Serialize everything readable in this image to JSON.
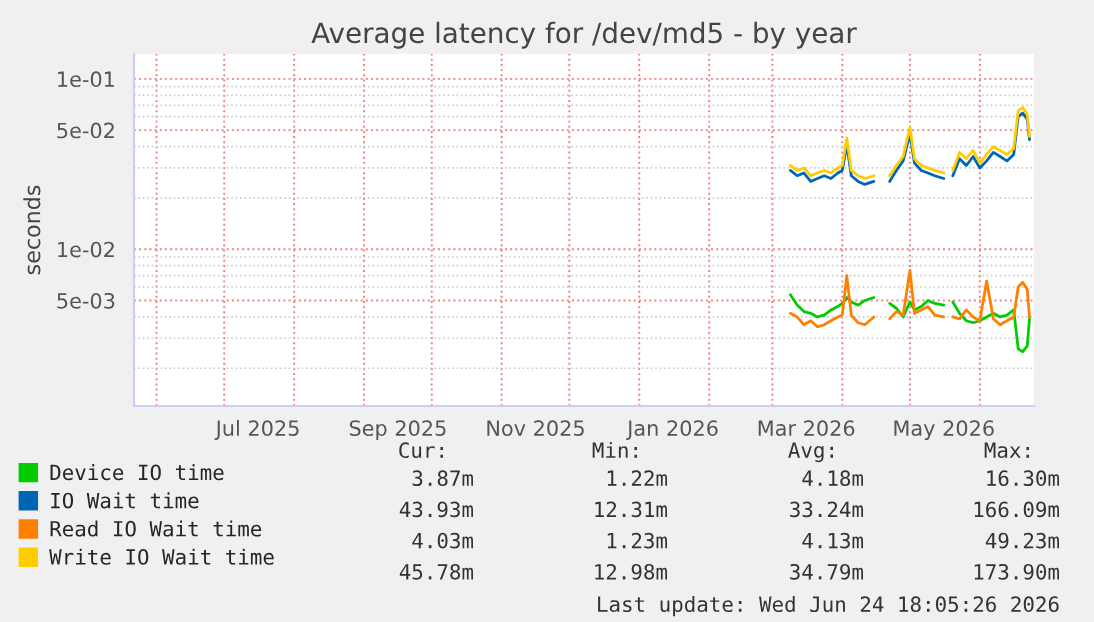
{
  "chart_data": {
    "type": "line",
    "title": "Average latency for /dev/md5 - by year",
    "ylabel": "seconds",
    "x": [
      "2026-03-09",
      "2026-03-12",
      "2026-03-15",
      "2026-03-18",
      "2026-03-21",
      "2026-03-24",
      "2026-03-27",
      "2026-03-30",
      "2026-04-01",
      "2026-04-03",
      "2026-04-05",
      "2026-04-08",
      "2026-04-11",
      "2026-04-15",
      "2026-04-18",
      "2026-04-22",
      "2026-04-25",
      "2026-04-28",
      "2026-05-01",
      "2026-05-03",
      "2026-05-06",
      "2026-05-09",
      "2026-05-12",
      "2026-05-16",
      "2026-05-18",
      "2026-05-20",
      "2026-05-23",
      "2026-05-26",
      "2026-05-29",
      "2026-06-01",
      "2026-06-04",
      "2026-06-07",
      "2026-06-10",
      "2026-06-13",
      "2026-06-16",
      "2026-06-18",
      "2026-06-20",
      "2026-06-22",
      "2026-06-23"
    ],
    "series": [
      {
        "name": "Device IO time",
        "color": "#00cc00",
        "values": [
          0.0054,
          0.0047,
          0.0043,
          0.0042,
          0.004,
          0.0041,
          0.0044,
          0.0046,
          0.0048,
          0.0052,
          0.0049,
          0.0047,
          0.005,
          0.0052,
          null,
          0.0048,
          0.0045,
          0.004,
          0.0049,
          0.0044,
          0.0046,
          0.005,
          0.0048,
          0.0047,
          null,
          0.0049,
          0.0042,
          0.0038,
          0.0037,
          0.0038,
          0.004,
          0.0042,
          0.004,
          0.0041,
          0.0044,
          0.0026,
          0.0025,
          0.0027,
          0.0039
        ]
      },
      {
        "name": "IO Wait time",
        "color": "#0066b3",
        "values": [
          0.029,
          0.027,
          0.028,
          0.025,
          0.026,
          0.027,
          0.026,
          0.028,
          0.029,
          0.041,
          0.027,
          0.025,
          0.024,
          0.025,
          null,
          0.025,
          0.029,
          0.033,
          0.048,
          0.032,
          0.029,
          0.028,
          0.027,
          0.026,
          null,
          0.027,
          0.034,
          0.031,
          0.035,
          0.03,
          0.033,
          0.037,
          0.035,
          0.033,
          0.036,
          0.06,
          0.063,
          0.058,
          0.044
        ]
      },
      {
        "name": "Read IO Wait time",
        "color": "#ff8000",
        "values": [
          0.0042,
          0.004,
          0.0036,
          0.0038,
          0.0035,
          0.0036,
          0.0038,
          0.004,
          0.0041,
          0.007,
          0.0041,
          0.0037,
          0.0036,
          0.004,
          null,
          0.0039,
          0.0043,
          0.0041,
          0.0075,
          0.0042,
          0.0044,
          0.0046,
          0.0041,
          0.004,
          null,
          0.004,
          0.0039,
          0.0044,
          0.004,
          0.0038,
          0.0065,
          0.0039,
          0.0036,
          0.0038,
          0.004,
          0.006,
          0.0064,
          0.0058,
          0.004
        ]
      },
      {
        "name": "Write IO Wait time",
        "color": "#ffcc00",
        "values": [
          0.031,
          0.029,
          0.03,
          0.027,
          0.028,
          0.029,
          0.028,
          0.03,
          0.031,
          0.045,
          0.029,
          0.027,
          0.026,
          0.027,
          null,
          0.027,
          0.031,
          0.035,
          0.052,
          0.034,
          0.031,
          0.03,
          0.029,
          0.028,
          null,
          0.029,
          0.037,
          0.034,
          0.038,
          0.032,
          0.036,
          0.04,
          0.038,
          0.036,
          0.039,
          0.065,
          0.068,
          0.062,
          0.046
        ]
      }
    ],
    "log": "y",
    "ylim": [
      0.0012,
      0.14
    ],
    "yticks": [
      {
        "value": 0.005,
        "label": "5e-03"
      },
      {
        "value": 0.01,
        "label": "1e-02"
      },
      {
        "value": 0.05,
        "label": "5e-02"
      },
      {
        "value": 0.1,
        "label": "1e-01"
      }
    ],
    "xlim": [
      "2025-05-22",
      "2026-06-25"
    ],
    "xticks": [
      {
        "value": "2025-06-01",
        "label": null
      },
      {
        "value": "2025-07-01",
        "label": null
      },
      {
        "value": "2025-07-16",
        "label": "Jul 2025"
      },
      {
        "value": "2025-08-01",
        "label": null
      },
      {
        "value": "2025-09-01",
        "label": null
      },
      {
        "value": "2025-09-16",
        "label": "Sep 2025"
      },
      {
        "value": "2025-10-01",
        "label": null
      },
      {
        "value": "2025-11-01",
        "label": null
      },
      {
        "value": "2025-11-16",
        "label": "Nov 2025"
      },
      {
        "value": "2025-12-01",
        "label": null
      },
      {
        "value": "2026-01-01",
        "label": null
      },
      {
        "value": "2026-01-16",
        "label": "Jan 2026"
      },
      {
        "value": "2026-02-01",
        "label": null
      },
      {
        "value": "2026-03-01",
        "label": null
      },
      {
        "value": "2026-03-16",
        "label": "Mar 2026"
      },
      {
        "value": "2026-04-01",
        "label": null
      },
      {
        "value": "2026-05-01",
        "label": null
      },
      {
        "value": "2026-05-16",
        "label": "May 2026"
      },
      {
        "value": "2026-06-01",
        "label": null
      }
    ],
    "grid": true,
    "legend": "bottom",
    "line_style": "solid",
    "marker": "none",
    "annotations": [
      "Cur:",
      "Min:",
      "Avg:",
      "Max:",
      "3.87m",
      "1.22m",
      "4.18m",
      "16.30m",
      "43.93m",
      "12.31m",
      "33.24m",
      "166.09m",
      "4.03m",
      "1.23m",
      "4.13m",
      "49.23m",
      "45.78m",
      "12.98m",
      "34.79m",
      "173.90m",
      "Last update: Wed Jun 24 18:05:26 2026"
    ]
  }
}
